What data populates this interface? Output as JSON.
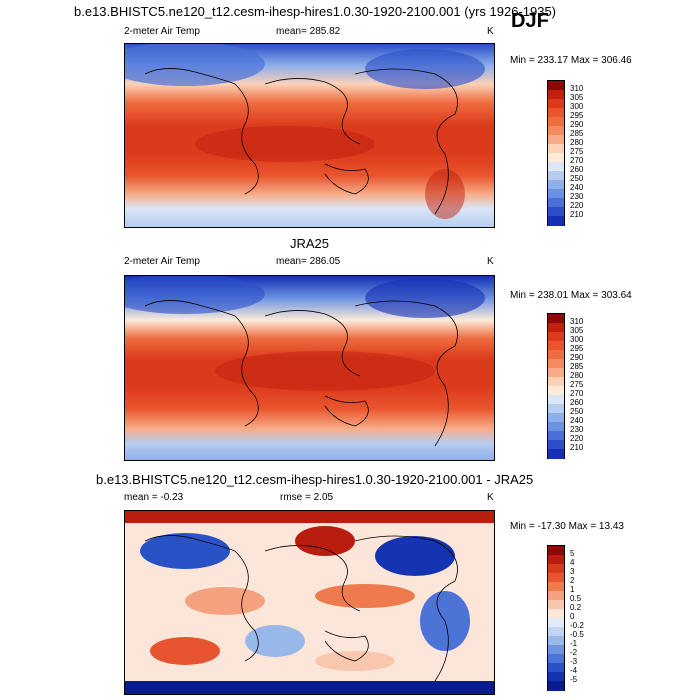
{
  "page": {
    "top_title": "b.e13.BHISTC5.ne120_t12.cesm-ihesp-hires1.0.30-1920-2100.001 (yrs 1926-1935)",
    "season": "DJF"
  },
  "panels": [
    {
      "id": "model",
      "heading": "",
      "left_label": "2-meter Air Temp",
      "center_label": "mean= 285.82",
      "units": "K",
      "range_text": "Min = 233.17 Max = 306.46",
      "colorbar_ticks": [
        "310",
        "305",
        "300",
        "295",
        "290",
        "285",
        "280",
        "275",
        "270",
        "260",
        "250",
        "240",
        "230",
        "220",
        "210"
      ]
    },
    {
      "id": "obs",
      "heading": "JRA25",
      "left_label": "2-meter Air Temp",
      "center_label": "mean= 286.05",
      "units": "K",
      "range_text": "Min = 238.01 Max = 303.64",
      "colorbar_ticks": [
        "310",
        "305",
        "300",
        "295",
        "290",
        "285",
        "280",
        "275",
        "270",
        "260",
        "250",
        "240",
        "230",
        "220",
        "210"
      ]
    },
    {
      "id": "diff",
      "heading": "b.e13.BHISTC5.ne120_t12.cesm-ihesp-hires1.0.30-1920-2100.001 - JRA25",
      "left_label": "mean =  -0.23",
      "center_label": "rmse =  2.05",
      "units": "K",
      "range_text": "Min = -17.30 Max =  13.43",
      "colorbar_ticks": [
        "5",
        "4",
        "3",
        "2",
        "1",
        "0.5",
        "0.2",
        "0",
        "-0.2",
        "-0.5",
        "-1",
        "-2",
        "-3",
        "-4",
        "-5"
      ]
    }
  ],
  "colors": {
    "temp_scale": [
      "#8b0a05",
      "#c0200e",
      "#dc3a1c",
      "#e9542d",
      "#ef6c3f",
      "#f48a5f",
      "#f7ac88",
      "#fbd1b8",
      "#fcebd9",
      "#dbe6f6",
      "#b6cdf0",
      "#8eb0ea",
      "#6b92e2",
      "#4a70d8",
      "#2a4fc9",
      "#1530b4",
      "#0a1a8f"
    ],
    "diff_scale": [
      "#8b0a05",
      "#b81d10",
      "#d63a1f",
      "#e6552f",
      "#ef7a4e",
      "#f5a17f",
      "#f9c7ad",
      "#fce6da",
      "#e3ebf8",
      "#c2d4f2",
      "#99b8ea",
      "#6f95e0",
      "#4b74d6",
      "#2a52c7",
      "#1534b2",
      "#0a1a8f"
    ]
  },
  "chart_data": [
    {
      "type": "heatmap",
      "title": "2-meter Air Temp",
      "subtitle": "mean= 285.82",
      "units": "K",
      "min": 233.17,
      "max": 306.46,
      "mean": 285.82,
      "legend_levels": [
        310,
        305,
        300,
        295,
        290,
        285,
        280,
        275,
        270,
        260,
        250,
        240,
        230,
        220,
        210
      ]
    },
    {
      "type": "heatmap",
      "title": "JRA25",
      "subtitle": "mean= 286.05",
      "units": "K",
      "min": 238.01,
      "max": 303.64,
      "mean": 286.05,
      "legend_levels": [
        310,
        305,
        300,
        295,
        290,
        285,
        280,
        275,
        270,
        260,
        250,
        240,
        230,
        220,
        210
      ]
    },
    {
      "type": "heatmap",
      "title": "b.e13.BHISTC5.ne120_t12.cesm-ihesp-hires1.0.30-1920-2100.001 - JRA25",
      "units": "K",
      "min": -17.3,
      "max": 13.43,
      "mean": -0.23,
      "rmse": 2.05,
      "legend_levels": [
        5,
        4,
        3,
        2,
        1,
        0.5,
        0.2,
        0,
        -0.2,
        -0.5,
        -1,
        -2,
        -3,
        -4,
        -5
      ]
    }
  ]
}
